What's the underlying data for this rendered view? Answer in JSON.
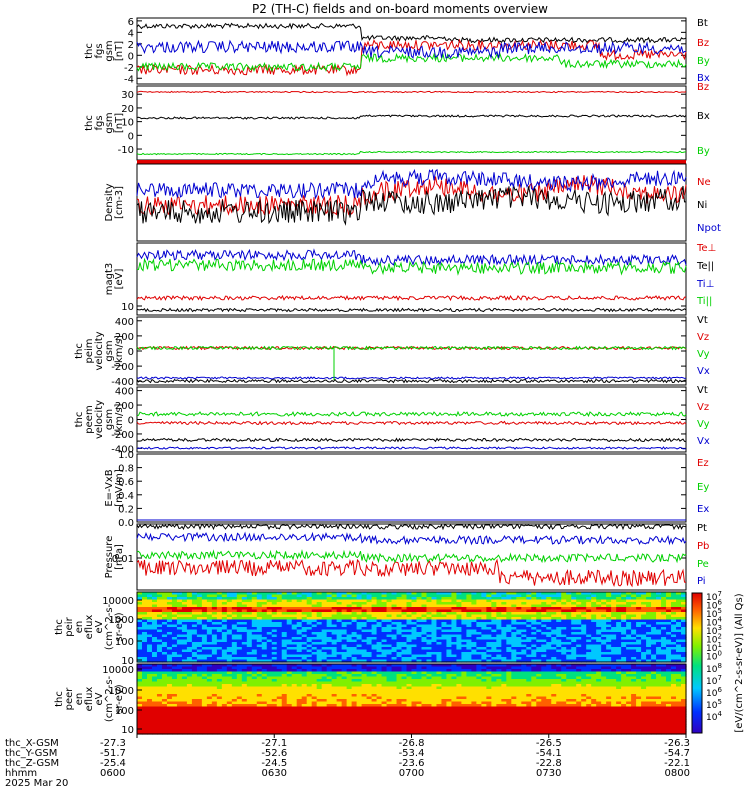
{
  "title": "P2 (TH-C) fields and on-board moments overview",
  "colors": {
    "black": "#000000",
    "red": "#e00000",
    "green": "#00d000",
    "blue": "#0000d0",
    "frame": "#000000"
  },
  "chart_data": [
    {
      "type": "line",
      "name": "fgs-gsm",
      "ylabel_lines": [
        "thc",
        "fgs",
        "gsm",
        "[nT]"
      ],
      "yticks": [
        "6",
        "4",
        "2",
        "0",
        "-2",
        "-4"
      ],
      "ylim": [
        -5,
        6.5
      ],
      "series": [
        {
          "name": "Bt",
          "color": "black"
        },
        {
          "name": "Bz",
          "color": "red"
        },
        {
          "name": "By",
          "color": "green"
        },
        {
          "name": "Bx",
          "color": "blue"
        }
      ]
    },
    {
      "type": "line",
      "name": "fgs-gsm-dsl",
      "ylabel_lines": [
        "thc",
        "fgs",
        "gsm",
        "[nT]"
      ],
      "yticks": [
        "30",
        "20",
        "10",
        "0",
        "-10"
      ],
      "ylim": [
        -18,
        36
      ],
      "series": [
        {
          "name": "Bz",
          "color": "red"
        },
        {
          "name": "Bx",
          "color": "black"
        },
        {
          "name": "By",
          "color": "green"
        }
      ]
    },
    {
      "type": "line",
      "name": "density",
      "ylabel_lines": [
        "Density",
        "[cm-3]"
      ],
      "yticks": [],
      "series": [
        {
          "name": "Ne",
          "color": "red"
        },
        {
          "name": "Ni",
          "color": "black"
        },
        {
          "name": "Npot",
          "color": "blue"
        }
      ]
    },
    {
      "type": "line",
      "name": "temperature",
      "ylabel_lines": [
        "magt3",
        "[eV]"
      ],
      "yticks": [
        "10"
      ],
      "series": [
        {
          "name": "Te⊥",
          "color": "red"
        },
        {
          "name": "Te||",
          "color": "black"
        },
        {
          "name": "Ti⊥",
          "color": "blue"
        },
        {
          "name": "Ti||",
          "color": "green"
        }
      ]
    },
    {
      "type": "line",
      "name": "peim-velocity",
      "ylabel_lines": [
        "thc",
        "peim",
        "velocity",
        "gsm",
        "[km/s]"
      ],
      "yticks": [
        "400",
        "200",
        "0",
        "-200",
        "-400"
      ],
      "ylim": [
        -450,
        450
      ],
      "series": [
        {
          "name": "Vt",
          "color": "black"
        },
        {
          "name": "Vz",
          "color": "red"
        },
        {
          "name": "Vy",
          "color": "green"
        },
        {
          "name": "Vx",
          "color": "blue"
        }
      ]
    },
    {
      "type": "line",
      "name": "peem-velocity",
      "ylabel_lines": [
        "thc",
        "peem",
        "velocity",
        "gsm",
        "[km/s]"
      ],
      "yticks": [
        "400",
        "200",
        "0",
        "-200",
        "-400"
      ],
      "ylim": [
        -450,
        450
      ],
      "series": [
        {
          "name": "Vt",
          "color": "black"
        },
        {
          "name": "Vz",
          "color": "red"
        },
        {
          "name": "Vy",
          "color": "green"
        },
        {
          "name": "Vx",
          "color": "blue"
        }
      ]
    },
    {
      "type": "line",
      "name": "efield",
      "ylabel_lines": [
        "E=-VxB",
        "[mV/m]"
      ],
      "yticks": [
        "1.0",
        "0.8",
        "0.6",
        "0.4",
        "0.2",
        "0.0"
      ],
      "ylim": [
        0,
        1
      ],
      "series": [
        {
          "name": "Ez",
          "color": "red"
        },
        {
          "name": "Ey",
          "color": "green"
        },
        {
          "name": "Ex",
          "color": "blue"
        }
      ]
    },
    {
      "type": "line",
      "name": "pressure",
      "ylabel_lines": [
        "Pressure",
        "[nPa]"
      ],
      "yticks": [
        "0.01"
      ],
      "series": [
        {
          "name": "Pt",
          "color": "black"
        },
        {
          "name": "Pb",
          "color": "red"
        },
        {
          "name": "Pe",
          "color": "green"
        },
        {
          "name": "Pi",
          "color": "blue"
        }
      ]
    },
    {
      "type": "heatmap",
      "name": "peir",
      "ylabel_lines": [
        "thc",
        "peir",
        "en",
        "eflux",
        "eV",
        "(cm^2-s-",
        "sr-eV)"
      ],
      "yticks": [
        "10000",
        "1000",
        "100",
        "10"
      ]
    },
    {
      "type": "heatmap",
      "name": "peer",
      "ylabel_lines": [
        "thc",
        "peer",
        "en",
        "eflux",
        "eV",
        "(cm^2-s-",
        "sr-eV)"
      ],
      "yticks": [
        "10000",
        "1000",
        "100",
        "10"
      ]
    }
  ],
  "colorbar": {
    "label": "[eV/(cm^2-s-sr-eV)]  (All Qs)",
    "upper_ticks": [
      "10^7",
      "10^6",
      "10^5",
      "10^4",
      "10^3",
      "10^2",
      "10^1",
      "10^0"
    ],
    "lower_ticks": [
      "10^8",
      "10^7",
      "10^6",
      "10^5",
      "10^4"
    ]
  },
  "xaxis": {
    "row_labels": [
      "thc_X-GSM",
      "thc_Y-GSM",
      "thc_Z-GSM",
      "hhmm"
    ],
    "date": "2025 Mar 20",
    "ticks": [
      {
        "x": "-27.3",
        "y": "-51.7",
        "z": "-25.4",
        "t": "0600"
      },
      {
        "x": "-27.1",
        "y": "-52.6",
        "z": "-24.5",
        "t": "0630"
      },
      {
        "x": "-26.8",
        "y": "-53.4",
        "z": "-23.6",
        "t": "0700"
      },
      {
        "x": "-26.5",
        "y": "-54.1",
        "z": "-22.8",
        "t": "0730"
      },
      {
        "x": "-26.3",
        "y": "-54.7",
        "z": "-22.1",
        "t": "0800"
      }
    ]
  }
}
